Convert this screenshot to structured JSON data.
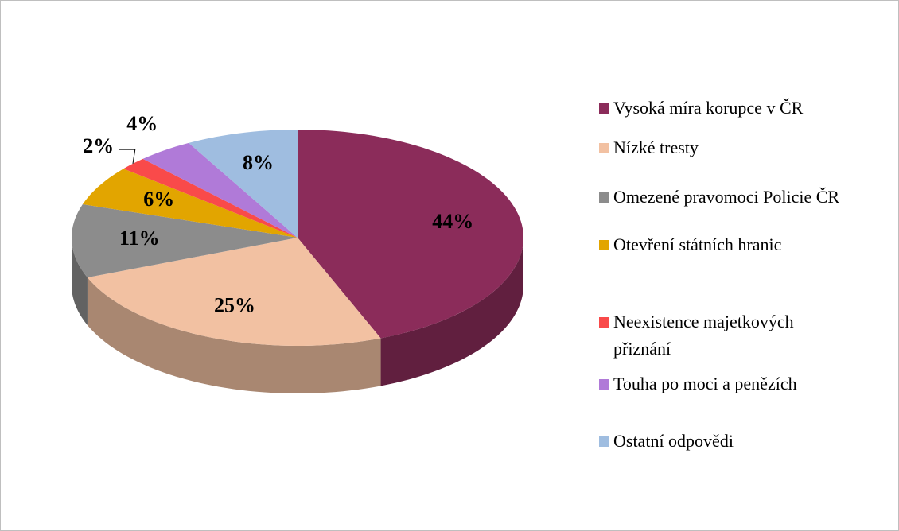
{
  "chart_data": {
    "type": "pie",
    "categories": [
      "Vysoká míra korupce v ČR",
      "Nízké tresty",
      "Omezené pravomoci Policie ČR",
      "Otevření státních hranic",
      "Neexistence majetkových přiznání",
      "Touha po moci a penězích",
      "Ostatní odpovědi"
    ],
    "values": [
      44,
      25,
      11,
      6,
      2,
      4,
      8
    ],
    "value_labels": [
      "44%",
      "25%",
      "11%",
      "6%",
      "2%",
      "4%",
      "8%"
    ],
    "colors": [
      "#8b2c5a",
      "#f2c1a2",
      "#8c8c8c",
      "#e2a500",
      "#f94a4a",
      "#b07ad8",
      "#9fbde0"
    ],
    "legend": "right"
  }
}
